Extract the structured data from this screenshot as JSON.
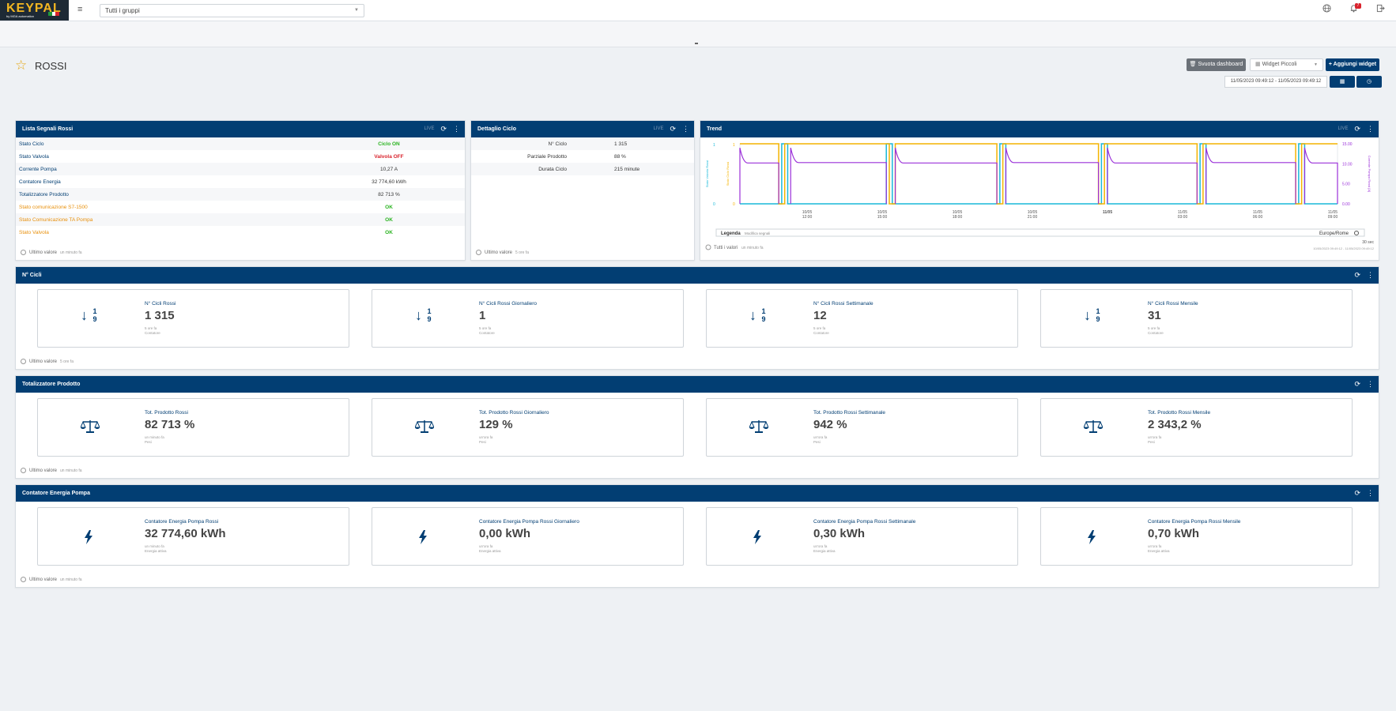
{
  "topbar": {
    "logo_text": "KEYPAL",
    "logo_sub": "by MGA automation",
    "group_select": "Tutti i gruppi",
    "notif_count": "7",
    "icons": [
      "menu-icon",
      "globe-icon",
      "bell-icon",
      "logout-icon"
    ]
  },
  "page": {
    "title": "ROSSI",
    "btn_clear": "Svuota dashboard",
    "widget_select": "Widget Piccoli",
    "btn_add": "Aggiungi widget",
    "daterange": "11/05/2023 09:49:12 - 11/05/2023 09:49:12"
  },
  "colors": {
    "primary": "#023e73",
    "accent": "#e6a817",
    "ok": "#29b31f",
    "error": "#d9232d",
    "warn": "#e8900c"
  },
  "signals": {
    "title": "Lista Segnali Rossi",
    "live": "LIVE",
    "rows": [
      {
        "label": "Stato Ciclo",
        "value": "Ciclo ON"
      },
      {
        "label": "Stato Valvola",
        "value": "Valvola OFF"
      },
      {
        "label": "Corrente Pompa",
        "value": "10,27 A"
      },
      {
        "label": "Contatore Energia",
        "value": "32 774,60 kWh"
      },
      {
        "label": "Totalizzatore Prodotto",
        "value": "82 713 %"
      },
      {
        "label": "Stato comunicazione S7-1500",
        "value": "OK"
      },
      {
        "label": "Stato Comunicazione TA Pompa",
        "value": "OK"
      },
      {
        "label": "Stato Valvola",
        "value": "OK"
      }
    ],
    "footer": "Ultimo valore",
    "footer_ago": "un minuto fa"
  },
  "detail": {
    "title": "Dettaglio Ciclo",
    "live": "LIVE",
    "rows": [
      {
        "label": "N° Ciclo",
        "value": "1 315"
      },
      {
        "label": "Parziale Prodotto",
        "value": "88 %"
      },
      {
        "label": "Durata Ciclo",
        "value": "215 minute"
      }
    ],
    "footer": "Ultimo valore",
    "footer_ago": "5 ore fa"
  },
  "trend": {
    "title": "Trend",
    "live": "LIVE",
    "legend_label": "Legenda",
    "legend_sub": "Modifica segnali",
    "timezone": "Europe/Rome",
    "duration": "30 sec",
    "footer": "Tutti i valori",
    "footer_ago": "un minuto fa",
    "footer_range": "10/05/2023 09:49:12 - 11/05/2023 09:49:12",
    "y_left_ticks": [
      "1",
      "0"
    ],
    "y_right_ticks": [
      "15.00",
      "10.00",
      "5.00",
      "0.00"
    ],
    "axis_left1": "Stato Valvola Rossi",
    "axis_left2": "Stato Ciclo Rossi",
    "axis_right": "Corrente Pompa Rossi [A]",
    "x_ticks": [
      {
        "d": "10/05",
        "t": "12:00"
      },
      {
        "d": "10/05",
        "t": "15:00"
      },
      {
        "d": "10/05",
        "t": "18:00"
      },
      {
        "d": "10/05",
        "t": "21:00"
      },
      {
        "d": "11/05",
        "t": ""
      },
      {
        "d": "11/05",
        "t": "03:00"
      },
      {
        "d": "11/05",
        "t": "06:00"
      },
      {
        "d": "11/05",
        "t": "09:00"
      }
    ]
  },
  "chart_data": {
    "type": "line",
    "x_ticks": [
      "10/05 12:00",
      "10/05 15:00",
      "10/05 18:00",
      "10/05 21:00",
      "11/05",
      "11/05 03:00",
      "11/05 06:00",
      "11/05 09:00"
    ],
    "series": [
      {
        "name": "Stato Valvola Rossi",
        "color": "#19b9d9",
        "axis": "left",
        "ylim": [
          0,
          1
        ],
        "steps": [
          [
            0.0,
            0
          ],
          [
            0.07,
            1
          ],
          [
            0.08,
            0
          ],
          [
            0.245,
            1
          ],
          [
            0.255,
            0
          ],
          [
            0.435,
            1
          ],
          [
            0.445,
            0
          ],
          [
            0.605,
            1
          ],
          [
            0.615,
            0
          ],
          [
            0.77,
            1
          ],
          [
            0.78,
            0
          ],
          [
            0.935,
            1
          ],
          [
            0.945,
            0
          ],
          [
            1.0,
            0
          ]
        ]
      },
      {
        "name": "Stato Ciclo Rossi",
        "color": "#f4b400",
        "axis": "left",
        "ylim": [
          0,
          1
        ],
        "steps": [
          [
            0.0,
            1
          ],
          [
            0.065,
            0
          ],
          [
            0.075,
            1
          ],
          [
            0.25,
            0
          ],
          [
            0.26,
            1
          ],
          [
            0.43,
            0
          ],
          [
            0.44,
            1
          ],
          [
            0.6,
            0
          ],
          [
            0.61,
            1
          ],
          [
            0.765,
            0
          ],
          [
            0.775,
            1
          ],
          [
            0.93,
            0
          ],
          [
            0.94,
            1
          ],
          [
            1.0,
            1
          ]
        ]
      },
      {
        "name": "Corrente Pompa Rossi [A]",
        "color": "#9b30d9",
        "axis": "right",
        "ylim": [
          0,
          15
        ],
        "segments": [
          [
            0.0,
            0.065,
            10.2
          ],
          [
            0.085,
            0.245,
            10.3
          ],
          [
            0.26,
            0.43,
            10.2
          ],
          [
            0.445,
            0.6,
            10.3
          ],
          [
            0.615,
            0.765,
            10.2
          ],
          [
            0.78,
            0.93,
            10.3
          ],
          [
            0.945,
            1.0,
            10.2
          ]
        ]
      }
    ]
  },
  "cicli": {
    "title": "N° Cicli",
    "footer": "Ultimo valore",
    "footer_ago": "5 ore fa",
    "cards": [
      {
        "title": "N° Cicli Rossi",
        "value": "1 315",
        "ago": "5 ore fa",
        "cat": "Contatore"
      },
      {
        "title": "N° Cicli Rossi Giornaliero",
        "value": "1",
        "ago": "5 ore fa",
        "cat": "Contatore"
      },
      {
        "title": "N° Cicli Rossi Settimanale",
        "value": "12",
        "ago": "5 ore fa",
        "cat": "Contatore"
      },
      {
        "title": "N° Cicli Rossi Mensile",
        "value": "31",
        "ago": "5 ore fa",
        "cat": "Contatore"
      }
    ]
  },
  "totalizzatore": {
    "title": "Totalizzatore Prodotto",
    "footer": "Ultimo valore",
    "footer_ago": "un minuto fa",
    "cards": [
      {
        "title": "Tot. Prodotto Rossi",
        "value": "82 713 %",
        "ago": "un minuto fa",
        "cat": "Pesi"
      },
      {
        "title": "Tot. Prodotto Rossi Giornaliero",
        "value": "129 %",
        "ago": "un'ora fa",
        "cat": "Pesi"
      },
      {
        "title": "Tot. Prodotto Rossi Settimanale",
        "value": "942 %",
        "ago": "un'ora fa",
        "cat": "Pesi"
      },
      {
        "title": "Tot. Prodotto Rossi Mensile",
        "value": "2 343,2 %",
        "ago": "un'ora fa",
        "cat": "Pesi"
      }
    ]
  },
  "energia": {
    "title": "Contatore Energia Pompa",
    "footer": "Ultimo valore",
    "footer_ago": "un minuto fa",
    "cards": [
      {
        "title": "Contatore Energia Pompa Rossi",
        "value": "32 774,60 kWh",
        "ago": "un minuto fa",
        "cat": "Energia attiva"
      },
      {
        "title": "Contatore Energia Pompa Rossi Giornaliero",
        "value": "0,00 kWh",
        "ago": "un'ora fa",
        "cat": "Energia attiva"
      },
      {
        "title": "Contatore Energia Pompa Rossi Settimanale",
        "value": "0,30 kWh",
        "ago": "un'ora fa",
        "cat": "Energia attiva"
      },
      {
        "title": "Contatore Energia Pompa Rossi Mensile",
        "value": "0,70 kWh",
        "ago": "un'ora fa",
        "cat": "Energia attiva"
      }
    ]
  }
}
